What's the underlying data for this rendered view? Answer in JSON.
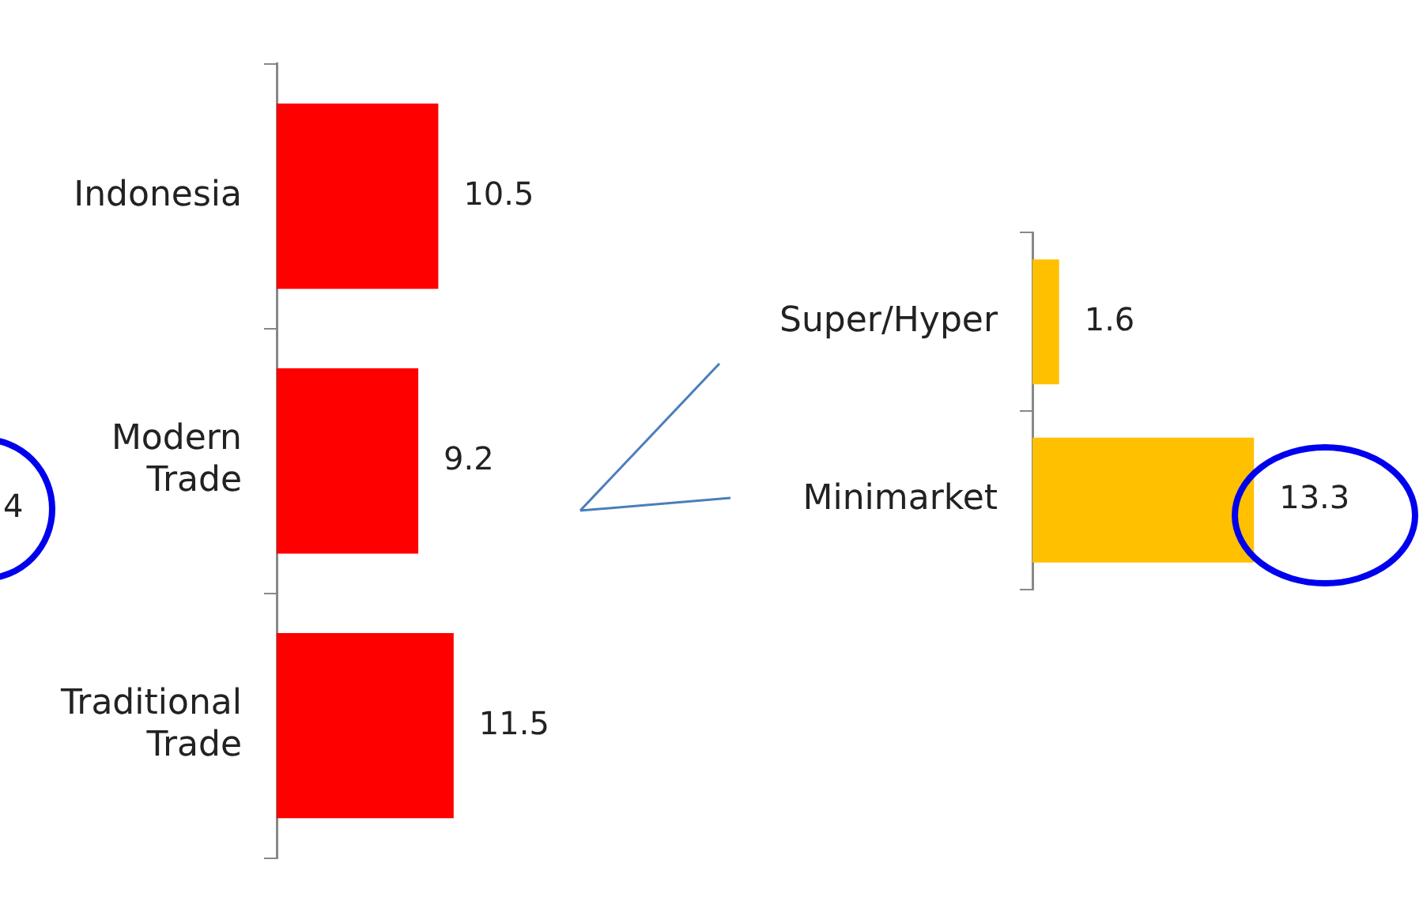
{
  "chart_data": [
    {
      "type": "bar",
      "orientation": "horizontal",
      "categories": [
        "Indonesia",
        "Modern Trade",
        "Traditional Trade"
      ],
      "values": [
        10.5,
        9.2,
        11.5
      ],
      "color": "#ff0000",
      "data_labels": true,
      "grid": false,
      "legend": false,
      "annotations": [
        "4"
      ]
    },
    {
      "type": "bar",
      "orientation": "horizontal",
      "categories": [
        "Super/Hyper",
        "Minimarket"
      ],
      "values": [
        1.6,
        13.3
      ],
      "color": "#ffc000",
      "data_labels": true,
      "grid": false,
      "legend": false
    }
  ]
}
